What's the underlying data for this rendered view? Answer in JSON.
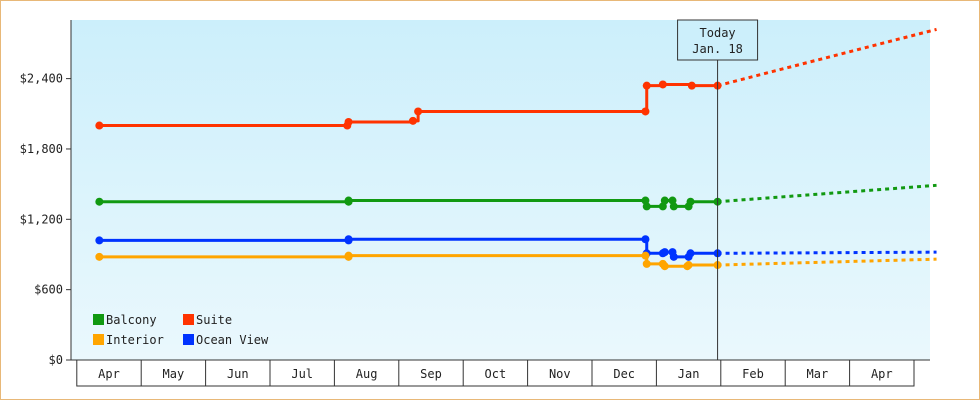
{
  "chart_data": {
    "type": "line",
    "title": "",
    "xlabel": "",
    "ylabel": "",
    "ylim": [
      0,
      2900
    ],
    "y_ticks": [
      {
        "value": 0,
        "label": "$0"
      },
      {
        "value": 600,
        "label": "$600"
      },
      {
        "value": 1200,
        "label": "$1,200"
      },
      {
        "value": 1800,
        "label": "$1,800"
      },
      {
        "value": 2400,
        "label": "$2,400"
      }
    ],
    "x_months": [
      "Apr",
      "May",
      "Jun",
      "Jul",
      "Aug",
      "Sep",
      "Oct",
      "Nov",
      "Dec",
      "Jan",
      "Feb",
      "Mar",
      "Apr"
    ],
    "today": {
      "line1": "Today",
      "line2": "Jan. 18",
      "x": 9.45
    },
    "legend": {
      "placement": "bottom-left",
      "items": [
        {
          "label": "Balcony",
          "color": "#119911"
        },
        {
          "label": "Suite",
          "color": "#ff3300"
        },
        {
          "label": "Interior",
          "color": "#ffa500"
        },
        {
          "label": "Ocean View",
          "color": "#0033ff"
        }
      ]
    },
    "series": [
      {
        "name": "Suite",
        "color": "#ff3300",
        "points": [
          [
            -0.15,
            2000
          ],
          [
            3.7,
            2000
          ],
          [
            3.72,
            2030
          ],
          [
            4.72,
            2040
          ],
          [
            4.8,
            2120
          ],
          [
            8.33,
            2120
          ],
          [
            8.35,
            2340
          ],
          [
            8.6,
            2350
          ],
          [
            9.05,
            2340
          ],
          [
            9.45,
            2340
          ]
        ],
        "projection": [
          [
            9.45,
            2340
          ],
          [
            12.85,
            2820
          ]
        ]
      },
      {
        "name": "Balcony",
        "color": "#119911",
        "points": [
          [
            -0.15,
            1350
          ],
          [
            3.72,
            1350
          ],
          [
            3.72,
            1360
          ],
          [
            8.33,
            1360
          ],
          [
            8.35,
            1310
          ],
          [
            8.6,
            1310
          ],
          [
            8.63,
            1360
          ],
          [
            8.75,
            1360
          ],
          [
            8.77,
            1310
          ],
          [
            9.0,
            1310
          ],
          [
            9.03,
            1350
          ],
          [
            9.45,
            1350
          ]
        ],
        "projection": [
          [
            9.45,
            1350
          ],
          [
            12.85,
            1490
          ]
        ]
      },
      {
        "name": "Ocean View",
        "color": "#0033ff",
        "points": [
          [
            -0.15,
            1020
          ],
          [
            3.72,
            1020
          ],
          [
            3.72,
            1030
          ],
          [
            8.33,
            1030
          ],
          [
            8.35,
            910
          ],
          [
            8.6,
            910
          ],
          [
            8.63,
            920
          ],
          [
            8.75,
            920
          ],
          [
            8.77,
            880
          ],
          [
            9.0,
            880
          ],
          [
            9.03,
            910
          ],
          [
            9.45,
            910
          ]
        ],
        "projection": [
          [
            9.45,
            910
          ],
          [
            12.85,
            920
          ]
        ]
      },
      {
        "name": "Interior",
        "color": "#ffa500",
        "points": [
          [
            -0.15,
            880
          ],
          [
            3.72,
            880
          ],
          [
            3.72,
            890
          ],
          [
            8.33,
            890
          ],
          [
            8.35,
            820
          ],
          [
            8.6,
            820
          ],
          [
            8.63,
            800
          ],
          [
            8.98,
            800
          ],
          [
            9.0,
            810
          ],
          [
            9.45,
            810
          ]
        ],
        "projection": [
          [
            9.45,
            810
          ],
          [
            12.85,
            860
          ]
        ]
      }
    ]
  }
}
